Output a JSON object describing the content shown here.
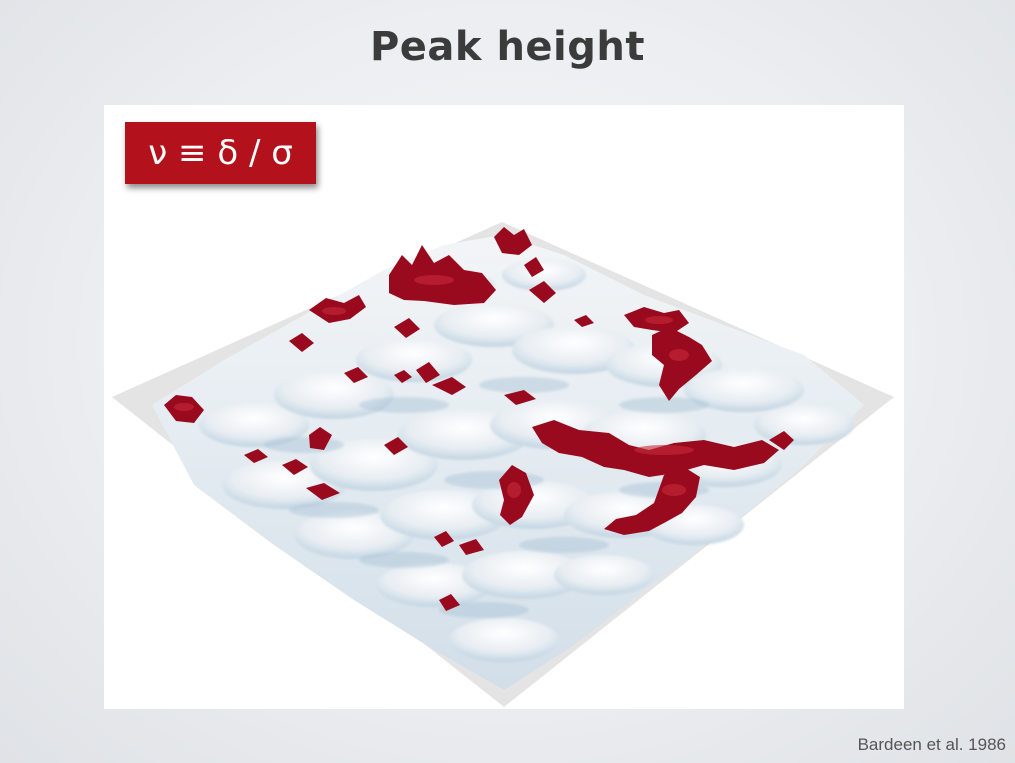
{
  "slide": {
    "title": "Peak height"
  },
  "figure": {
    "formula": "ν ≡ δ / σ",
    "colors": {
      "peak": "#9a0a1e",
      "surface_light": "#e9eef3",
      "surface_shadow": "#b9cfdf",
      "plane": "#e4e4e4",
      "badge": "#b3121c"
    }
  },
  "citation": "Bardeen et al. 1986"
}
